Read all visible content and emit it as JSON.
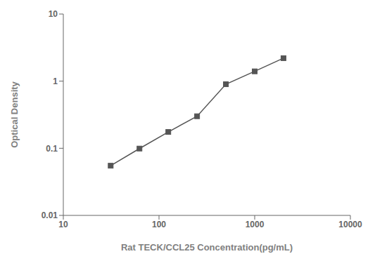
{
  "chart_data": {
    "type": "line",
    "x": [
      31.25,
      62.5,
      125,
      250,
      500,
      1000,
      2000
    ],
    "values": [
      0.055,
      0.099,
      0.175,
      0.3,
      0.9,
      1.4,
      2.2
    ],
    "xlabel": "Rat TECK/CCL25 Concentration(pg/mL)",
    "ylabel": "Optical Density",
    "xlim": [
      10,
      10000
    ],
    "ylim": [
      0.01,
      10
    ],
    "xticks": [
      10,
      100,
      1000,
      10000
    ],
    "yticks": [
      0.01,
      0.1,
      1,
      10
    ],
    "log": true,
    "grid": false,
    "color": "#555555",
    "marker": "square"
  }
}
